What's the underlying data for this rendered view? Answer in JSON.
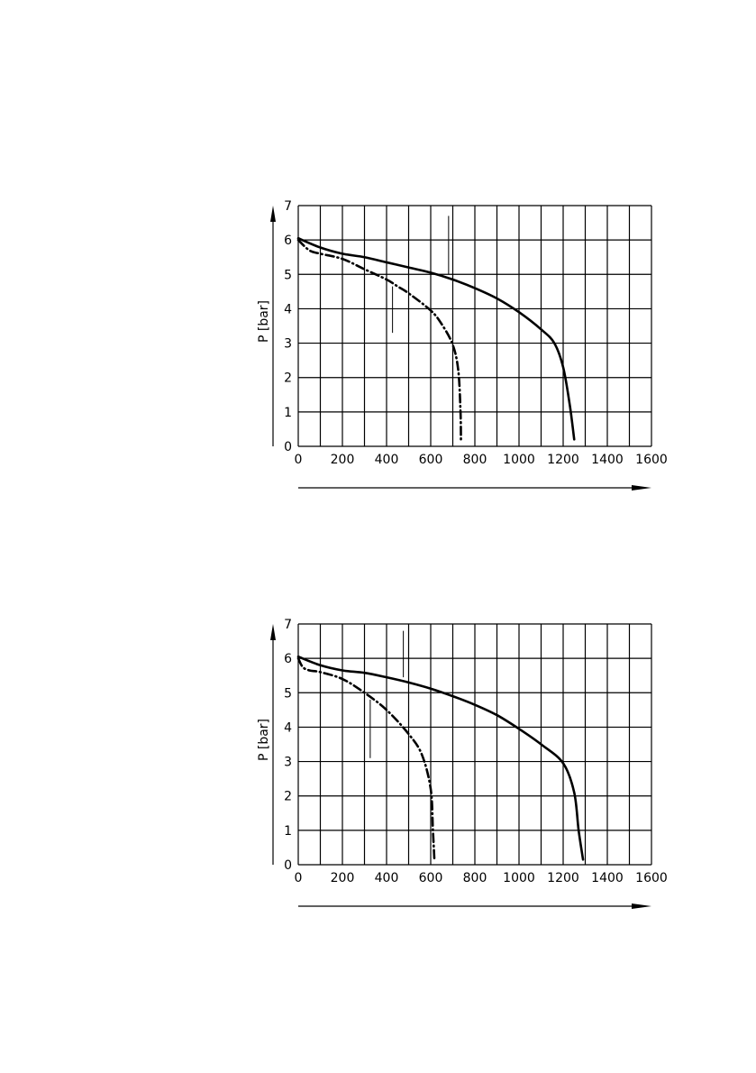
{
  "chart_data": [
    {
      "type": "line",
      "ylabel": "P [bar]",
      "xlabel": "",
      "xlim": [
        0,
        1600
      ],
      "ylim": [
        0,
        7
      ],
      "x_ticks": [
        "0",
        "200",
        "400",
        "600",
        "800",
        "1000",
        "1200",
        "1400",
        "1600"
      ],
      "y_ticks": [
        "0",
        "1",
        "2",
        "3",
        "4",
        "5",
        "6",
        "7"
      ],
      "grid": true,
      "x_grid_step": 100,
      "y_grid_step": 1,
      "series": [
        {
          "style": "solid",
          "color": "#000000",
          "points": [
            [
              0,
              6.05
            ],
            [
              100,
              5.78
            ],
            [
              200,
              5.6
            ],
            [
              300,
              5.5
            ],
            [
              400,
              5.35
            ],
            [
              500,
              5.2
            ],
            [
              600,
              5.05
            ],
            [
              700,
              4.85
            ],
            [
              800,
              4.6
            ],
            [
              900,
              4.3
            ],
            [
              1000,
              3.9
            ],
            [
              1100,
              3.4
            ],
            [
              1160,
              3.0
            ],
            [
              1200,
              2.3
            ],
            [
              1230,
              1.2
            ],
            [
              1250,
              0.2
            ]
          ]
        },
        {
          "style": "dash-dot",
          "color": "#000000",
          "points": [
            [
              0,
              6.0
            ],
            [
              50,
              5.7
            ],
            [
              100,
              5.6
            ],
            [
              200,
              5.45
            ],
            [
              300,
              5.15
            ],
            [
              400,
              4.85
            ],
            [
              450,
              4.65
            ],
            [
              500,
              4.45
            ],
            [
              600,
              3.95
            ],
            [
              650,
              3.55
            ],
            [
              700,
              2.95
            ],
            [
              725,
              2.2
            ],
            [
              735,
              1.0
            ],
            [
              737,
              0.15
            ]
          ]
        }
      ],
      "leader_lines": [
        [
          681,
          6.7,
          5.0
        ],
        [
          427,
          4.65,
          3.3
        ]
      ]
    },
    {
      "type": "line",
      "ylabel": "P [bar]",
      "xlabel": "",
      "xlim": [
        0,
        1600
      ],
      "ylim": [
        0,
        7
      ],
      "x_ticks": [
        "0",
        "200",
        "400",
        "600",
        "800",
        "1000",
        "1200",
        "1400",
        "1600"
      ],
      "y_ticks": [
        "0",
        "1",
        "2",
        "3",
        "4",
        "5",
        "6",
        "7"
      ],
      "grid": true,
      "x_grid_step": 100,
      "y_grid_step": 1,
      "series": [
        {
          "style": "solid",
          "color": "#000000",
          "points": [
            [
              0,
              6.05
            ],
            [
              100,
              5.8
            ],
            [
              200,
              5.65
            ],
            [
              300,
              5.58
            ],
            [
              400,
              5.45
            ],
            [
              500,
              5.3
            ],
            [
              600,
              5.12
            ],
            [
              700,
              4.9
            ],
            [
              800,
              4.65
            ],
            [
              900,
              4.35
            ],
            [
              1000,
              3.95
            ],
            [
              1100,
              3.5
            ],
            [
              1200,
              2.95
            ],
            [
              1250,
              2.1
            ],
            [
              1270,
              1.0
            ],
            [
              1290,
              0.15
            ]
          ]
        },
        {
          "style": "dash-dot",
          "color": "#000000",
          "points": [
            [
              0,
              6.0
            ],
            [
              20,
              5.75
            ],
            [
              50,
              5.65
            ],
            [
              100,
              5.6
            ],
            [
              200,
              5.4
            ],
            [
              300,
              5.0
            ],
            [
              400,
              4.5
            ],
            [
              500,
              3.8
            ],
            [
              560,
              3.2
            ],
            [
              600,
              2.2
            ],
            [
              610,
              1.0
            ],
            [
              617,
              0.1
            ]
          ]
        }
      ],
      "leader_lines": [
        [
          476,
          6.8,
          5.45
        ],
        [
          326,
          4.8,
          3.1
        ]
      ]
    }
  ]
}
